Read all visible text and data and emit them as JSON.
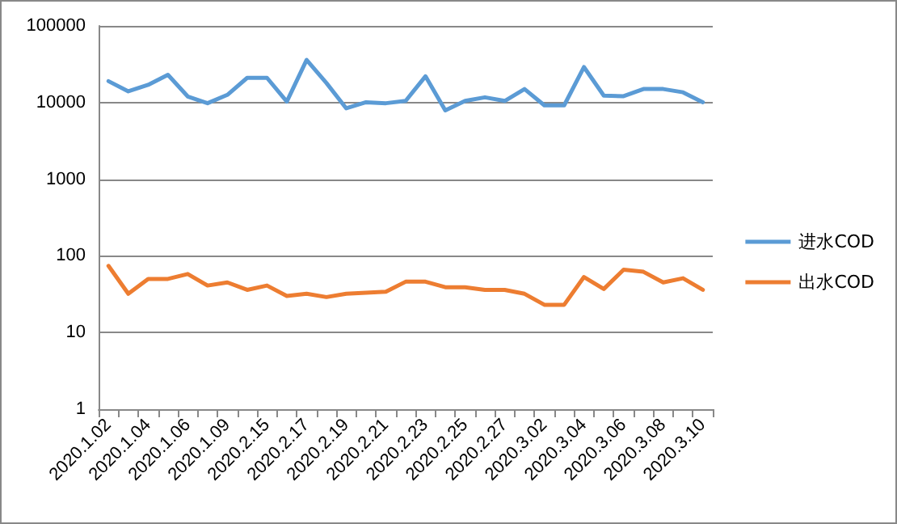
{
  "chart_data": {
    "type": "line",
    "categories": [
      "2020.1.02",
      null,
      "2020.1.04",
      null,
      "2020.1.06",
      null,
      "2020.1.09",
      null,
      "2020.2.15",
      null,
      "2020.2.17",
      null,
      "2020.2.19",
      null,
      "2020.2.21",
      null,
      "2020.2.23",
      null,
      "2020.2.25",
      null,
      "2020.2.27",
      null,
      "2020.3.02",
      null,
      "2020.3.04",
      null,
      "2020.3.06",
      null,
      "2020.3.08",
      null,
      "2020.3.10"
    ],
    "series": [
      {
        "name": "进水COD",
        "color": "#5b9bd5",
        "values": [
          19000,
          14000,
          17000,
          23000,
          12000,
          9800,
          12600,
          21000,
          21000,
          10300,
          36000,
          18000,
          8400,
          10100,
          9800,
          10500,
          22000,
          7900,
          10500,
          11700,
          10500,
          15000,
          9200,
          9200,
          29000,
          12300,
          12100,
          15000,
          15000,
          13600,
          10100
        ]
      },
      {
        "name": "出水COD",
        "color": "#ed7d31",
        "values": [
          74,
          32,
          50,
          50,
          58,
          41,
          45,
          36,
          41,
          30,
          32,
          29,
          32,
          33,
          34,
          46,
          46,
          39,
          39,
          36,
          36,
          32,
          23,
          23,
          53,
          37,
          66,
          62,
          45,
          51,
          36
        ]
      }
    ],
    "log": "y",
    "ylim": [
      1,
      100000
    ],
    "yticks": [
      1,
      10,
      100,
      1000,
      10000,
      100000
    ],
    "grid": "y",
    "legend": "right",
    "marker": "none",
    "line_style": "solid"
  }
}
